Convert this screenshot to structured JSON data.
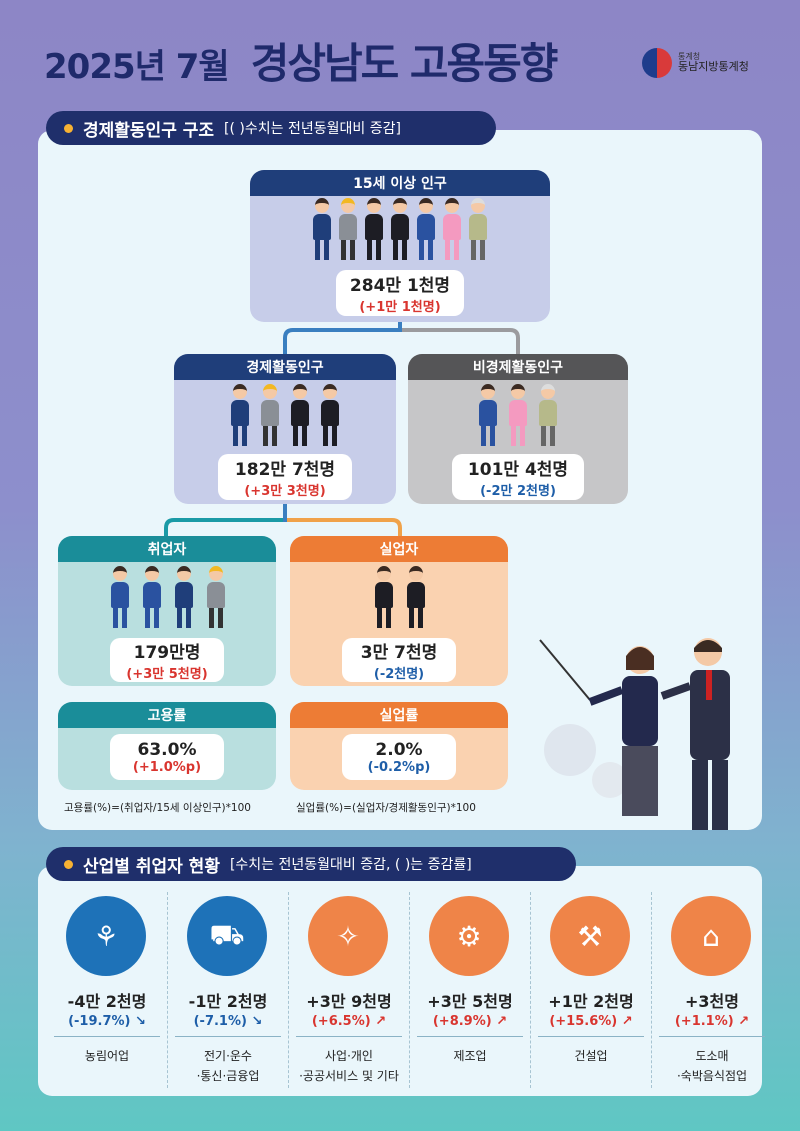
{
  "title": {
    "year_month": "2025년 7월",
    "main": "경상남도 고용동향"
  },
  "logo": {
    "small": "통계청",
    "name": "동남지방통계청"
  },
  "section1": {
    "heading": "경제활동인구 구조",
    "note": "[( )수치는 전년동월대비 증감]"
  },
  "section2": {
    "heading": "산업별 취업자 현황",
    "note": "[수치는 전년동월대비 증감, (   )는 증감률]"
  },
  "population": {
    "label": "15세 이상 인구",
    "value": "284만 1천명",
    "change": "(+1만 1천명)"
  },
  "active": {
    "label": "경제활동인구",
    "value": "182만 7천명",
    "change": "(+3만 3천명)"
  },
  "inactive": {
    "label": "비경제활동인구",
    "value": "101만 4천명",
    "change": "(-2만 2천명)"
  },
  "employed": {
    "label": "취업자",
    "value": "179만명",
    "change": "(+3만 5천명)"
  },
  "unemployed": {
    "label": "실업자",
    "value": "3만 7천명",
    "change": "(-2천명)"
  },
  "employment_rate": {
    "label": "고용률",
    "value": "63.0%",
    "change": "(+1.0%p)",
    "formula": "고용률(%)=(취업자/15세 이상인구)*100"
  },
  "unemployment_rate": {
    "label": "실업률",
    "value": "2.0%",
    "change": "(-0.2%p)",
    "formula": "실업률(%)=(실업자/경제활동인구)*100"
  },
  "industries": [
    {
      "value": "-4만 2천명",
      "rate": "(-19.7%)",
      "dir": "down",
      "label1": "농림어업",
      "label2": "",
      "icon": "farmer-icon",
      "color": "#1e72b8"
    },
    {
      "value": "-1만 2천명",
      "rate": "(-7.1%)",
      "dir": "down",
      "label1": "전기·운수",
      "label2": "·통신·금융업",
      "icon": "truck-icon",
      "color": "#1e72b8"
    },
    {
      "value": "+3만 9천명",
      "rate": "(+6.5%)",
      "dir": "up",
      "label1": "사업·개인",
      "label2": "·공공서비스 및 기타",
      "icon": "handshake-icon",
      "color": "#ef8448"
    },
    {
      "value": "+3만 5천명",
      "rate": "(+8.9%)",
      "dir": "up",
      "label1": "제조업",
      "label2": "",
      "icon": "robot-arm-icon",
      "color": "#ef8448"
    },
    {
      "value": "+1만 2천명",
      "rate": "(+15.6%)",
      "dir": "up",
      "label1": "건설업",
      "label2": "",
      "icon": "crane-icon",
      "color": "#ef8448"
    },
    {
      "value": "+3천명",
      "rate": "(+1.1%)",
      "dir": "up",
      "label1": "도소매",
      "label2": "·숙박음식점업",
      "icon": "shopping-cart-icon",
      "color": "#ef8448"
    }
  ],
  "colors": {
    "up": "#d9352f",
    "down": "#1e5ea8",
    "navy": "#1f2f6b"
  }
}
